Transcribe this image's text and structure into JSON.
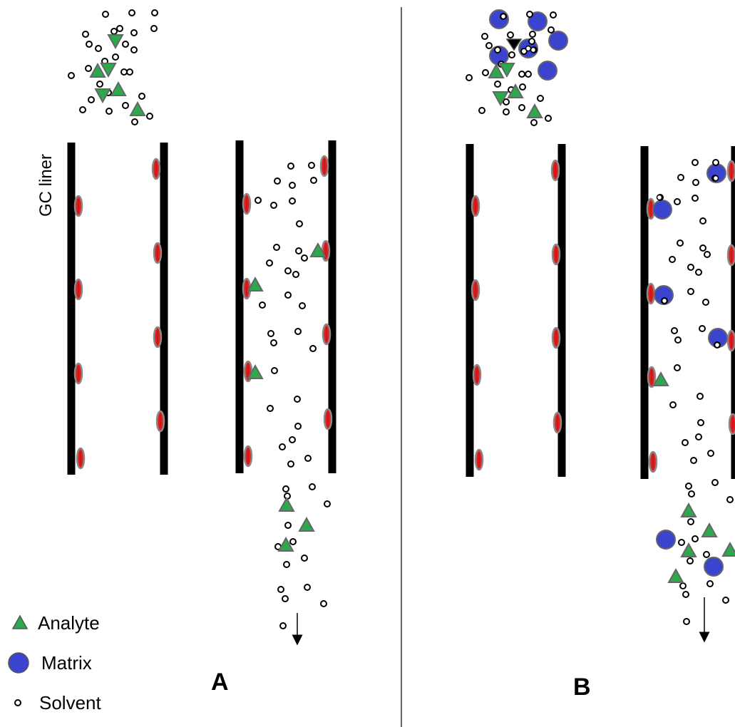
{
  "labels": {
    "liner": "GC liner",
    "panel_a": "A",
    "panel_b": "B"
  },
  "legend": [
    {
      "key": "analyte",
      "label": "Analyte",
      "icon": "analyte-triangle-icon"
    },
    {
      "key": "matrix",
      "label": "Matrix",
      "icon": "matrix-circle-icon"
    },
    {
      "key": "solvent",
      "label": "Solvent",
      "icon": "solvent-circle-icon"
    }
  ],
  "colors": {
    "analyte": "#2ea84c",
    "matrix": "#3a44cf",
    "solvent_stroke": "#000000",
    "active_site": "#e02020",
    "active_site_ring": "#8a8a8a",
    "liner_wall": "#000000"
  },
  "icons": {
    "arrow": "flow-direction-arrow-icon"
  }
}
